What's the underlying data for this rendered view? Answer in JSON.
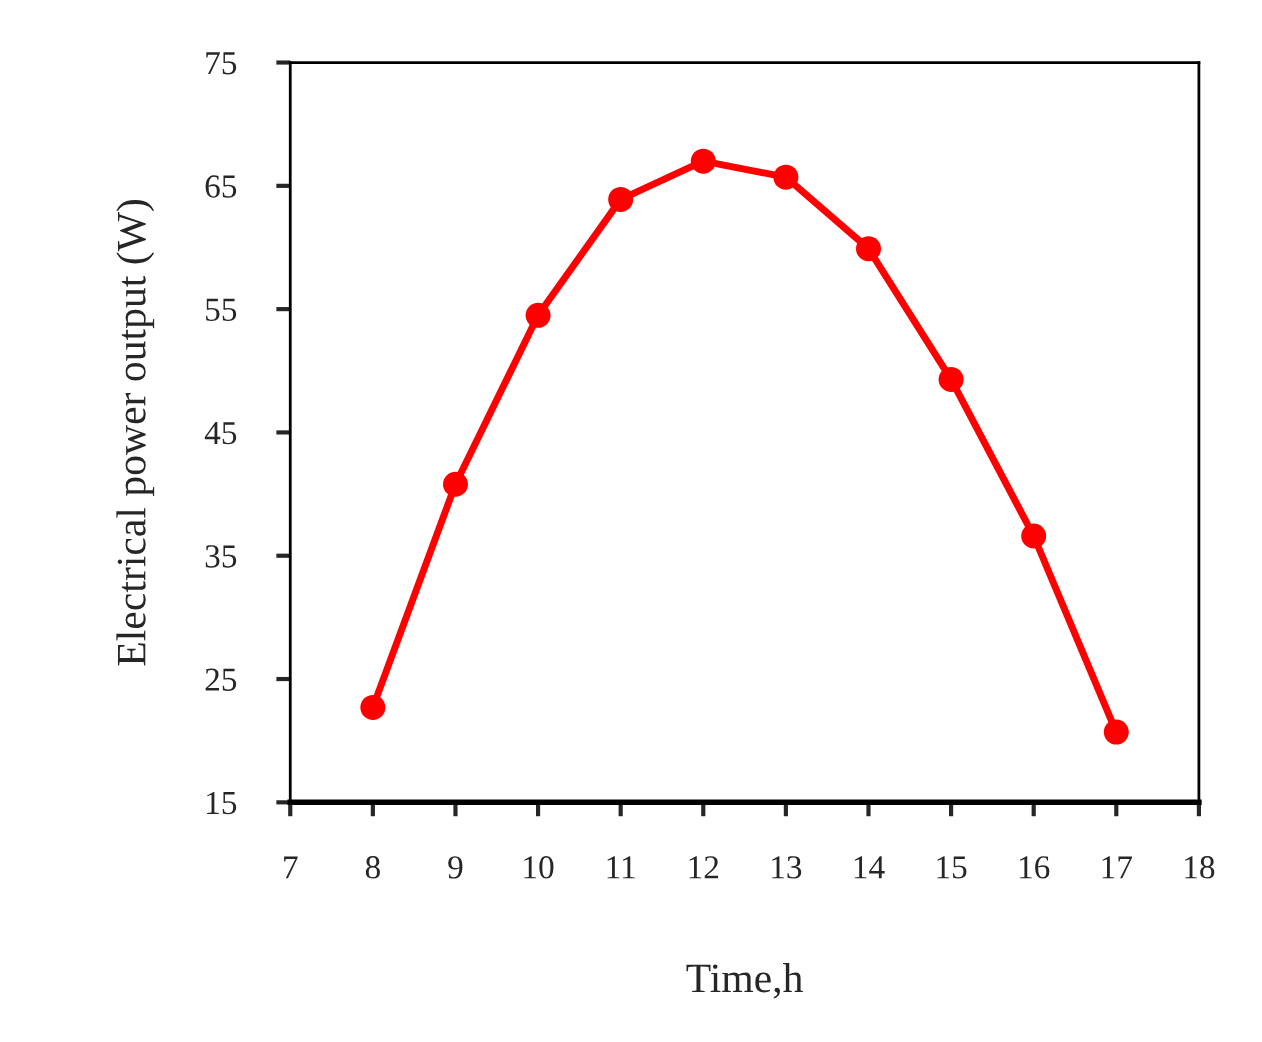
{
  "chart_data": {
    "type": "line",
    "xlabel": "Time,h",
    "ylabel": "Electrical power output (W)",
    "x": [
      8,
      9,
      10,
      11,
      12,
      13,
      14,
      15,
      16,
      17
    ],
    "series": [
      {
        "color": "#ff0000",
        "values": [
          22.7,
          40.8,
          54.5,
          63.9,
          67.0,
          65.7,
          59.9,
          49.3,
          36.6,
          20.7
        ]
      }
    ],
    "xlim": [
      7,
      18
    ],
    "xticks": [
      7,
      8,
      9,
      10,
      11,
      12,
      13,
      14,
      15,
      16,
      17,
      18
    ],
    "ylim": [
      15,
      75
    ],
    "yticks": [
      15,
      25,
      35,
      45,
      55,
      65,
      75
    ],
    "marker": "circle",
    "line_style": "solid",
    "grid": false,
    "legend": false
  }
}
